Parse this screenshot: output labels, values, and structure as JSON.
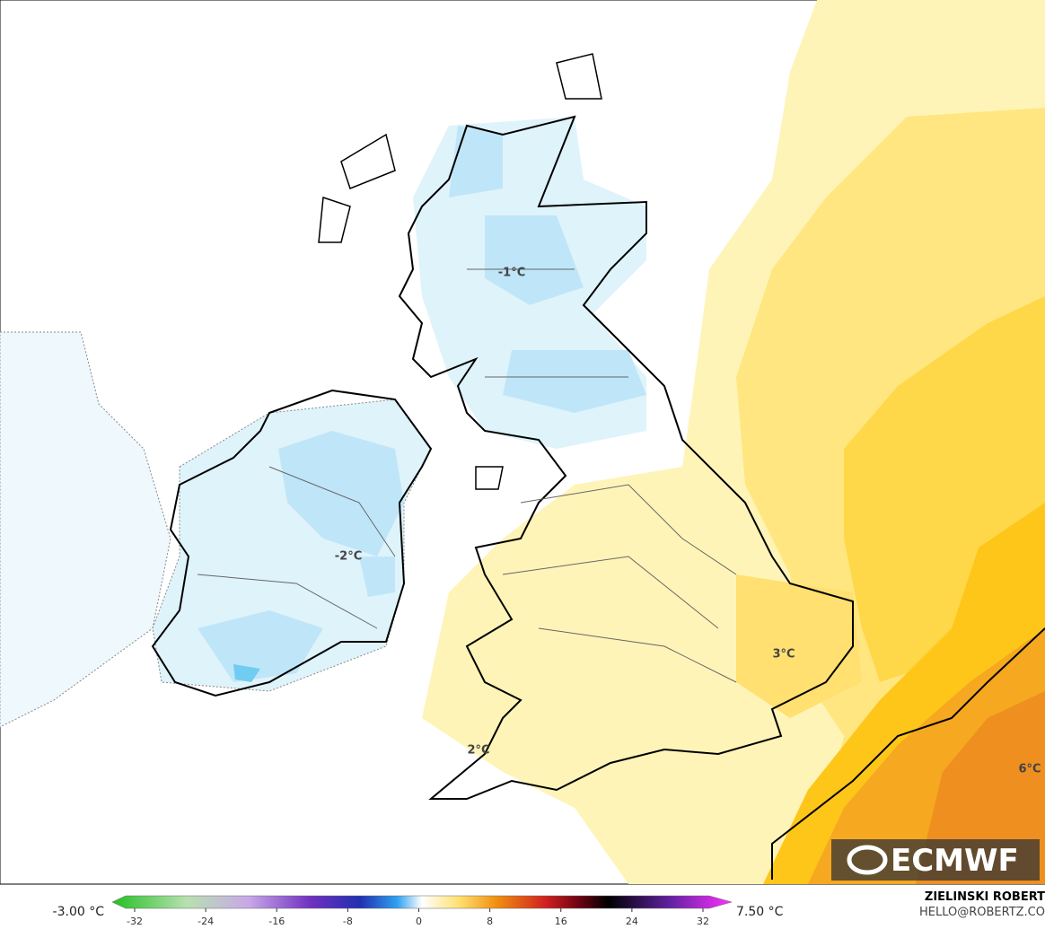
{
  "map": {
    "labels": [
      "-1°C",
      "-2°C",
      "3°C",
      "2°C",
      "6°C"
    ],
    "logo": "ECMWF"
  },
  "colorbar": {
    "min_label": "-3.00 °C",
    "max_label": "7.50 °C",
    "ticks": [
      -32,
      -24,
      -16,
      -8,
      0,
      8,
      16,
      24,
      32
    ]
  },
  "credit": {
    "name": "ZIELINSKI ROBERT",
    "email": "HELLO@ROBERTZ.CO"
  }
}
